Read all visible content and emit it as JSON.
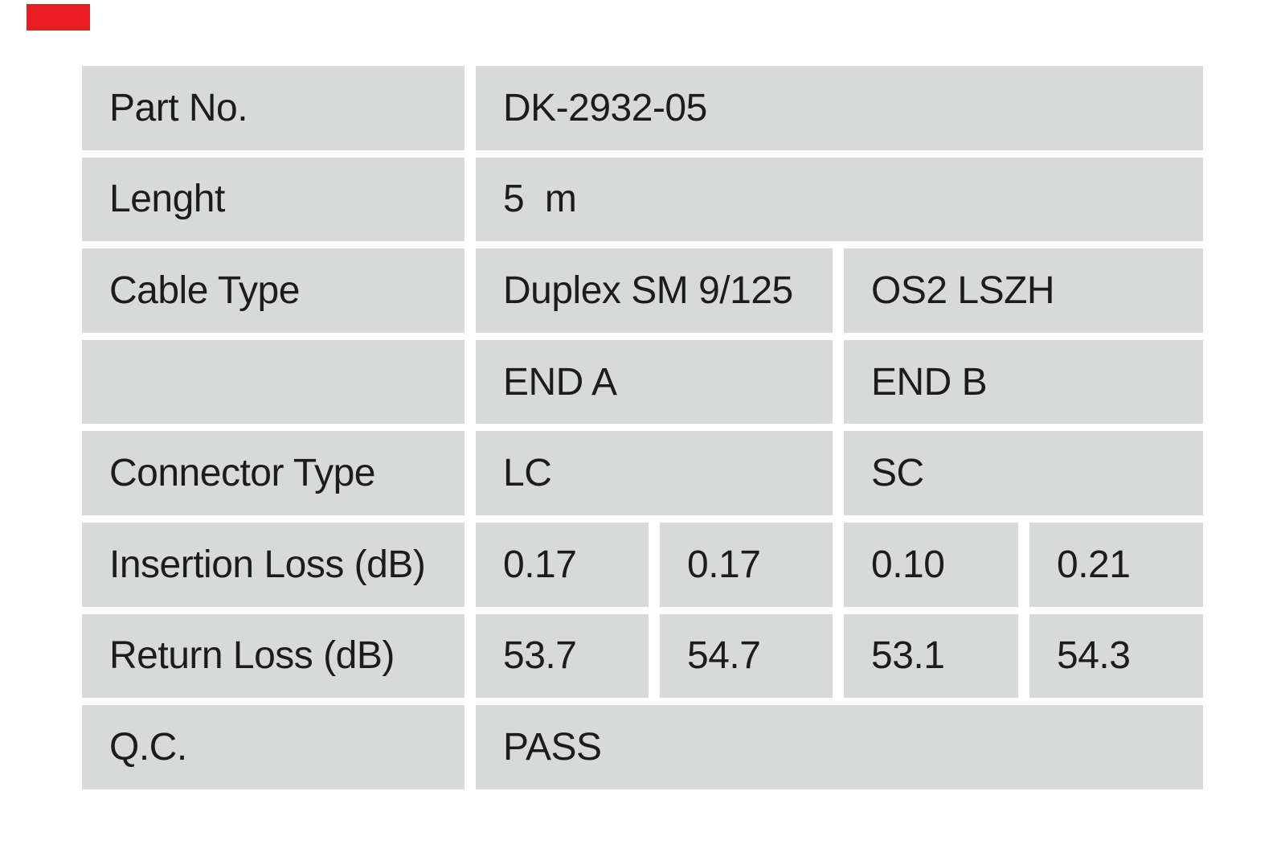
{
  "page": {
    "background": "#ffffff"
  },
  "corner_mark": {
    "color": "#ec1c24"
  },
  "table": {
    "cell_bg": "#d8dada",
    "text_color": "#1c1c1c",
    "rows": [
      {
        "label": "Part No.",
        "cells": [
          {
            "text": "DK-2932-05",
            "span": 4
          }
        ]
      },
      {
        "label": "Lenght",
        "cells": [
          {
            "text": "5  m",
            "span": 4
          }
        ]
      },
      {
        "label": "Cable Type",
        "cells": [
          {
            "text": "Duplex SM 9/125",
            "span": 2
          },
          {
            "text": "OS2 LSZH",
            "span": 2
          }
        ]
      },
      {
        "label": "",
        "cells": [
          {
            "text": "END A",
            "span": 2
          },
          {
            "text": "END B",
            "span": 2
          }
        ]
      },
      {
        "label": "Connector Type",
        "cells": [
          {
            "text": "LC",
            "span": 2
          },
          {
            "text": "SC",
            "span": 2
          }
        ]
      },
      {
        "label": "Insertion Loss (dB)",
        "cells": [
          {
            "text": "0.17",
            "span": 1
          },
          {
            "text": "0.17",
            "span": 1
          },
          {
            "text": "0.10",
            "span": 1
          },
          {
            "text": "0.21",
            "span": 1
          }
        ]
      },
      {
        "label": "Return Loss (dB)",
        "cells": [
          {
            "text": "53.7",
            "span": 1
          },
          {
            "text": "54.7",
            "span": 1
          },
          {
            "text": "53.1",
            "span": 1
          },
          {
            "text": "54.3",
            "span": 1
          }
        ]
      },
      {
        "label": "Q.C.",
        "cells": [
          {
            "text": "PASS",
            "span": 4
          }
        ]
      }
    ]
  }
}
